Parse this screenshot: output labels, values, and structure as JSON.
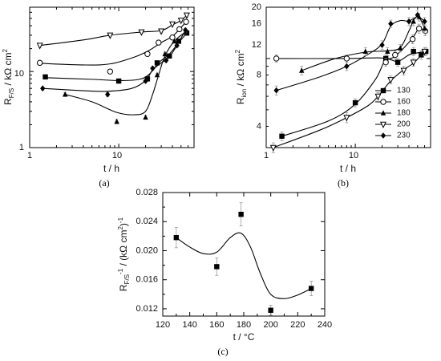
{
  "panels": [
    {
      "id": "a",
      "caption": "(a)",
      "xlabel_sub": "",
      "xlabel": "t / h",
      "ylabel_main": "R",
      "ylabel_sub": "F/S",
      "ylabel_tail": " / kΩ cm",
      "ylabel_sup": "2",
      "x_ticks": [
        "1",
        "10"
      ],
      "y_ticks": [
        "1",
        "10"
      ]
    },
    {
      "id": "b",
      "caption": "(b)",
      "xlabel": "t / h",
      "ylabel_main": "R",
      "ylabel_sub": "ion",
      "ylabel_tail": " / kΩ cm",
      "ylabel_sup": "2",
      "x_ticks": [
        "1",
        "10"
      ],
      "y_ticks": [
        "4",
        "8",
        "12",
        "16",
        "20"
      ]
    },
    {
      "id": "c",
      "caption": "(c)",
      "xlabel": "t / °C",
      "ylabel_main": "R",
      "ylabel_sub": "F/S",
      "ylabel_sup": "-1",
      "ylabel_tail": " / (kΩ cm",
      "ylabel_sup2": "2",
      "ylabel_tail2": ")",
      "ylabel_sup3": "-1",
      "x_ticks": [
        "120",
        "140",
        "160",
        "180",
        "200",
        "220",
        "240"
      ],
      "y_ticks": [
        "0.012",
        "0.016",
        "0.020",
        "0.024",
        "0.028"
      ]
    }
  ],
  "legend": [
    "130",
    "160",
    "180",
    "200",
    "230"
  ],
  "chart_data": [
    {
      "type": "scatter",
      "panel": "a",
      "xscale": "log",
      "yscale": "log",
      "xlim": [
        1,
        70
      ],
      "ylim": [
        1,
        70
      ],
      "series": [
        {
          "name": "130",
          "marker": "filled-square",
          "x": [
            1.5,
            10,
            21,
            27,
            37,
            47,
            58
          ],
          "y": [
            8.5,
            7.5,
            8,
            13,
            16,
            25,
            32
          ],
          "err": [
            0.5,
            0.5,
            0.5,
            0.8,
            1,
            1.5,
            2
          ]
        },
        {
          "name": "160",
          "marker": "open-circle",
          "x": [
            1.3,
            8,
            21,
            28,
            40,
            48,
            57
          ],
          "y": [
            13,
            10,
            17,
            24,
            28,
            36,
            45
          ],
          "err": [
            0.7,
            0.6,
            1,
            1.5,
            1.5,
            2,
            2.5
          ]
        },
        {
          "name": "180",
          "marker": "filled-triangle",
          "x": [
            2.5,
            9.5,
            20,
            27,
            33,
            42,
            56
          ],
          "y": [
            5,
            2.2,
            2.5,
            9,
            17,
            25,
            33
          ],
          "err": [
            0.3,
            0.15,
            0.15,
            0.5,
            1,
            1.3,
            2
          ]
        },
        {
          "name": "200",
          "marker": "open-triangle-down",
          "x": [
            1.3,
            8,
            18,
            30,
            40,
            50,
            58
          ],
          "y": [
            22,
            30,
            33,
            34,
            42,
            47,
            55
          ],
          "err": [
            1.2,
            1.5,
            1.5,
            2,
            2,
            2.5,
            3
          ]
        },
        {
          "name": "230",
          "marker": "filled-diamond",
          "x": [
            1.4,
            7.5,
            20,
            24,
            34,
            45,
            56
          ],
          "y": [
            6,
            5,
            7.5,
            11,
            14,
            22,
            35
          ],
          "err": [
            0.3,
            0.3,
            0.4,
            0.6,
            0.8,
            1.2,
            2
          ]
        }
      ]
    },
    {
      "type": "scatter",
      "panel": "b",
      "xscale": "log",
      "yscale": "log",
      "xlim": [
        1,
        70
      ],
      "ylim": [
        3,
        20
      ],
      "series": [
        {
          "name": "130",
          "marker": "filled-square",
          "x": [
            1.5,
            10,
            22,
            30,
            45,
            55,
            62
          ],
          "y": [
            3.5,
            5.5,
            10,
            9.5,
            11,
            10.5,
            11
          ],
          "err": [
            0.2,
            0.3,
            0.5,
            0.5,
            0.6,
            0.6,
            0.6
          ]
        },
        {
          "name": "160",
          "marker": "open-circle",
          "x": [
            1.3,
            8,
            22,
            28,
            44,
            52,
            61
          ],
          "y": [
            10,
            10,
            9.5,
            10.5,
            13,
            15,
            14.5
          ],
          "err": [
            0.5,
            0.5,
            0.5,
            0.6,
            0.8,
            0.9,
            0.9
          ]
        },
        {
          "name": "180",
          "marker": "filled-triangle",
          "x": [
            2.5,
            13,
            23,
            32,
            45,
            52,
            60
          ],
          "y": [
            8.5,
            11,
            11,
            11.5,
            16.5,
            17.5,
            15
          ],
          "err": [
            0.5,
            0.6,
            0.6,
            0.6,
            0.9,
            0.9,
            0.9
          ]
        },
        {
          "name": "200",
          "marker": "open-triangle-down",
          "x": [
            1.2,
            8,
            18,
            25,
            35,
            45,
            60
          ],
          "y": [
            3,
            4.5,
            6,
            7.5,
            8.5,
            9.5,
            11
          ],
          "err": [
            0.2,
            0.3,
            0.3,
            0.4,
            0.5,
            0.5,
            0.6
          ]
        },
        {
          "name": "230",
          "marker": "filled-diamond",
          "x": [
            1.3,
            8,
            20,
            25,
            40,
            50,
            60
          ],
          "y": [
            6.5,
            9,
            12,
            16,
            16.5,
            18,
            16.5
          ],
          "err": [
            0.4,
            0.5,
            0.7,
            0.8,
            0.9,
            1,
            0.9
          ]
        }
      ]
    },
    {
      "type": "scatter",
      "panel": "c",
      "xlim": [
        120,
        240
      ],
      "ylim": [
        0.011,
        0.028
      ],
      "series": [
        {
          "marker": "filled-square",
          "x": [
            130,
            160,
            178,
            200,
            230
          ],
          "y": [
            0.0218,
            0.0178,
            0.025,
            0.0118,
            0.0148
          ],
          "err": [
            0.0014,
            0.0012,
            0.0016,
            0.0007,
            0.001
          ]
        }
      ]
    }
  ],
  "fit_curves": {
    "a": {
      "130": [
        [
          1.5,
          8.3
        ],
        [
          5,
          7.9
        ],
        [
          10,
          7.6
        ],
        [
          17,
          7.9
        ],
        [
          22,
          9.2
        ],
        [
          28,
          13
        ],
        [
          37,
          17
        ],
        [
          47,
          24
        ],
        [
          58,
          32
        ]
      ],
      "160": [
        [
          1.3,
          12.8
        ],
        [
          4,
          12.2
        ],
        [
          8,
          12.6
        ],
        [
          15,
          15.5
        ],
        [
          22,
          19
        ],
        [
          30,
          24
        ],
        [
          40,
          29
        ],
        [
          48,
          36
        ],
        [
          57,
          45
        ]
      ],
      "180": [
        [
          2.5,
          5
        ],
        [
          5,
          4
        ],
        [
          9.5,
          2.9
        ],
        [
          15,
          2.7
        ],
        [
          20,
          3
        ],
        [
          24,
          5
        ],
        [
          28,
          9
        ],
        [
          33,
          16
        ],
        [
          42,
          25
        ],
        [
          56,
          33
        ]
      ],
      "200": [
        [
          1.3,
          22
        ],
        [
          4,
          26
        ],
        [
          8,
          30
        ],
        [
          18,
          33
        ],
        [
          30,
          34.5
        ],
        [
          40,
          41
        ],
        [
          50,
          47
        ],
        [
          58,
          55
        ]
      ],
      "230": [
        [
          1.4,
          6
        ],
        [
          4,
          5.6
        ],
        [
          7.5,
          5.5
        ],
        [
          14,
          6
        ],
        [
          20,
          7.6
        ],
        [
          24,
          10.5
        ],
        [
          30,
          13
        ],
        [
          36,
          15
        ],
        [
          45,
          22
        ],
        [
          56,
          35
        ]
      ]
    },
    "b": {
      "130": [
        [
          1.5,
          3.5
        ],
        [
          5,
          4.3
        ],
        [
          10,
          5.4
        ],
        [
          17,
          7.6
        ],
        [
          22,
          9.8
        ],
        [
          30,
          9.6
        ],
        [
          40,
          10.5
        ],
        [
          50,
          10.8
        ],
        [
          62,
          11
        ]
      ],
      "160": [
        [
          1.3,
          10
        ],
        [
          8,
          10
        ],
        [
          18,
          10.1
        ],
        [
          25,
          10
        ],
        [
          32,
          11
        ],
        [
          44,
          13.2
        ],
        [
          52,
          15
        ],
        [
          61,
          14.5
        ]
      ],
      "180": [
        [
          2.5,
          8.5
        ],
        [
          6,
          10
        ],
        [
          13,
          10.9
        ],
        [
          23,
          11.1
        ],
        [
          32,
          11.6
        ],
        [
          40,
          14.5
        ],
        [
          46,
          17
        ],
        [
          52,
          17.5
        ],
        [
          60,
          15
        ]
      ],
      "200": [
        [
          1.2,
          3
        ],
        [
          4,
          3.8
        ],
        [
          8,
          4.5
        ],
        [
          14,
          5.3
        ],
        [
          18,
          6
        ],
        [
          25,
          7.4
        ],
        [
          35,
          8.6
        ],
        [
          45,
          9.4
        ],
        [
          60,
          11
        ]
      ],
      "230": [
        [
          1.3,
          6.5
        ],
        [
          4,
          7.8
        ],
        [
          8,
          9
        ],
        [
          14,
          10.6
        ],
        [
          20,
          12.2
        ],
        [
          25,
          15.5
        ],
        [
          32,
          16.7
        ],
        [
          40,
          16.6
        ],
        [
          50,
          17.6
        ],
        [
          60,
          16.5
        ]
      ]
    },
    "c": [
      [
        130,
        0.0218
      ],
      [
        140,
        0.0205
      ],
      [
        150,
        0.0196
      ],
      [
        160,
        0.0198
      ],
      [
        170,
        0.0218
      ],
      [
        178,
        0.0224
      ],
      [
        185,
        0.0205
      ],
      [
        192,
        0.017
      ],
      [
        200,
        0.014
      ],
      [
        210,
        0.0134
      ],
      [
        220,
        0.0139
      ],
      [
        230,
        0.0148
      ]
    ]
  }
}
